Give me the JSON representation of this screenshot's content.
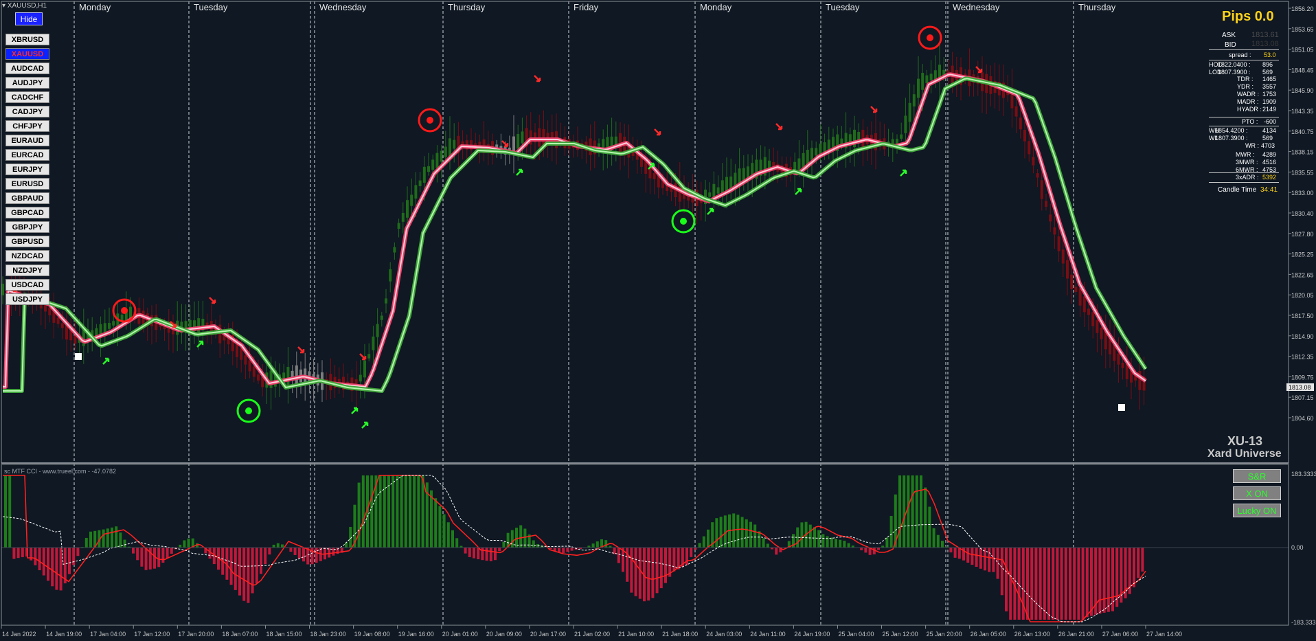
{
  "window": {
    "symbol_title": "XAUUSD,H1",
    "hide_label": "Hide"
  },
  "symbols": [
    "XBRUSD",
    "XAUUSD",
    "AUDCAD",
    "AUDJPY",
    "CADCHF",
    "CADJPY",
    "CHFJPY",
    "EURAUD",
    "EURCAD",
    "EURJPY",
    "EURUSD",
    "GBPAUD",
    "GBPCAD",
    "GBPJPY",
    "GBPUSD",
    "NZDCAD",
    "NZDJPY",
    "USDCAD",
    "USDJPY"
  ],
  "active_symbol": "XAUUSD",
  "day_labels": [
    "Monday",
    "Tuesday",
    "Wednesday",
    "Thursday",
    "Friday",
    "Monday",
    "Tuesday",
    "Wednesday",
    "Thursday"
  ],
  "time_labels": [
    "14 Jan 2022",
    "14 Jan 19:00",
    "17 Jan 04:00",
    "17 Jan 12:00",
    "17 Jan 20:00",
    "18 Jan 07:00",
    "18 Jan 15:00",
    "18 Jan 23:00",
    "19 Jan 08:00",
    "19 Jan 16:00",
    "20 Jan 01:00",
    "20 Jan 09:00",
    "20 Jan 17:00",
    "21 Jan 02:00",
    "21 Jan 10:00",
    "21 Jan 18:00",
    "24 Jan 03:00",
    "24 Jan 11:00",
    "24 Jan 19:00",
    "25 Jan 04:00",
    "25 Jan 12:00",
    "25 Jan 20:00",
    "26 Jan 05:00",
    "26 Jan 13:00",
    "26 Jan 21:00",
    "27 Jan 06:00",
    "27 Jan 14:00"
  ],
  "price_axis": [
    "1856.20",
    "1853.65",
    "1851.05",
    "1848.45",
    "1845.90",
    "1843.35",
    "1840.75",
    "1838.15",
    "1835.55",
    "1833.00",
    "1830.40",
    "1827.80",
    "1825.25",
    "1822.65",
    "1820.05",
    "1817.50",
    "1814.90",
    "1812.35",
    "1809.75",
    "1807.15",
    "1804.60"
  ],
  "current_price": "1813.08",
  "info_panel": {
    "title": "Pips 0.0",
    "ask_label": "ASK",
    "ask_value": "1813.61",
    "bid_label": "BID",
    "bid_value": "1813.08",
    "spread_label": "spread :",
    "spread_value": "53.0",
    "rows1": [
      [
        "HOD",
        "1822.0400 :",
        "896"
      ],
      [
        "LOD",
        "1807.3900 :",
        "569"
      ]
    ],
    "rows2": [
      [
        "TDR :",
        "1465"
      ],
      [
        "YDR :",
        "3557"
      ],
      [
        "WADR :",
        "1753"
      ],
      [
        "MADR :",
        "1909"
      ],
      [
        "HYADR :",
        "2149"
      ]
    ],
    "pto_label": "PTO :",
    "pto_value": "-600",
    "rows3": [
      [
        "WH",
        "1854.4200 :",
        "4134"
      ],
      [
        "WL",
        "1807.3900 :",
        "569"
      ]
    ],
    "wr_label": "WR :",
    "wr_value": "4703",
    "rows4": [
      [
        "MWR :",
        "4289"
      ],
      [
        "3MWR :",
        "4516"
      ],
      [
        "6MWR :",
        "4753"
      ]
    ],
    "adr_label": "3xADR :",
    "adr_value": "5392",
    "candle_label": "Candle Time",
    "candle_value": "34:41"
  },
  "brand": {
    "line1": "XU-13",
    "line2": "Xard Universe"
  },
  "sub": {
    "title": "sc MTF CCI - www.trueel.com - -47.0782",
    "axis": [
      "183.3333",
      "0.00",
      "-183.3333"
    ],
    "buttons": [
      "S&R",
      "X ON",
      "Lucky ON"
    ]
  },
  "colors": {
    "bg": "#0f1823",
    "bull": "#1f6b1a",
    "bear": "#7a0d13",
    "pink": "#e8426a",
    "green": "#39ff2a"
  }
}
